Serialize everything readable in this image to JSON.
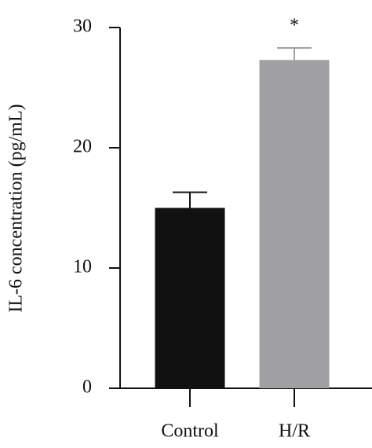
{
  "chart_data": {
    "type": "bar",
    "ylabel": "IL-6 concentration (pg/mL)",
    "categories": [
      "Control",
      "H/R"
    ],
    "values": [
      15.0,
      27.3
    ],
    "errors": [
      1.3,
      1.0
    ],
    "colors": [
      "#111111",
      "#a0a0a3"
    ],
    "annotation": "*",
    "ylim": [
      0,
      30
    ],
    "yticks": [
      0,
      10,
      20,
      30
    ]
  }
}
